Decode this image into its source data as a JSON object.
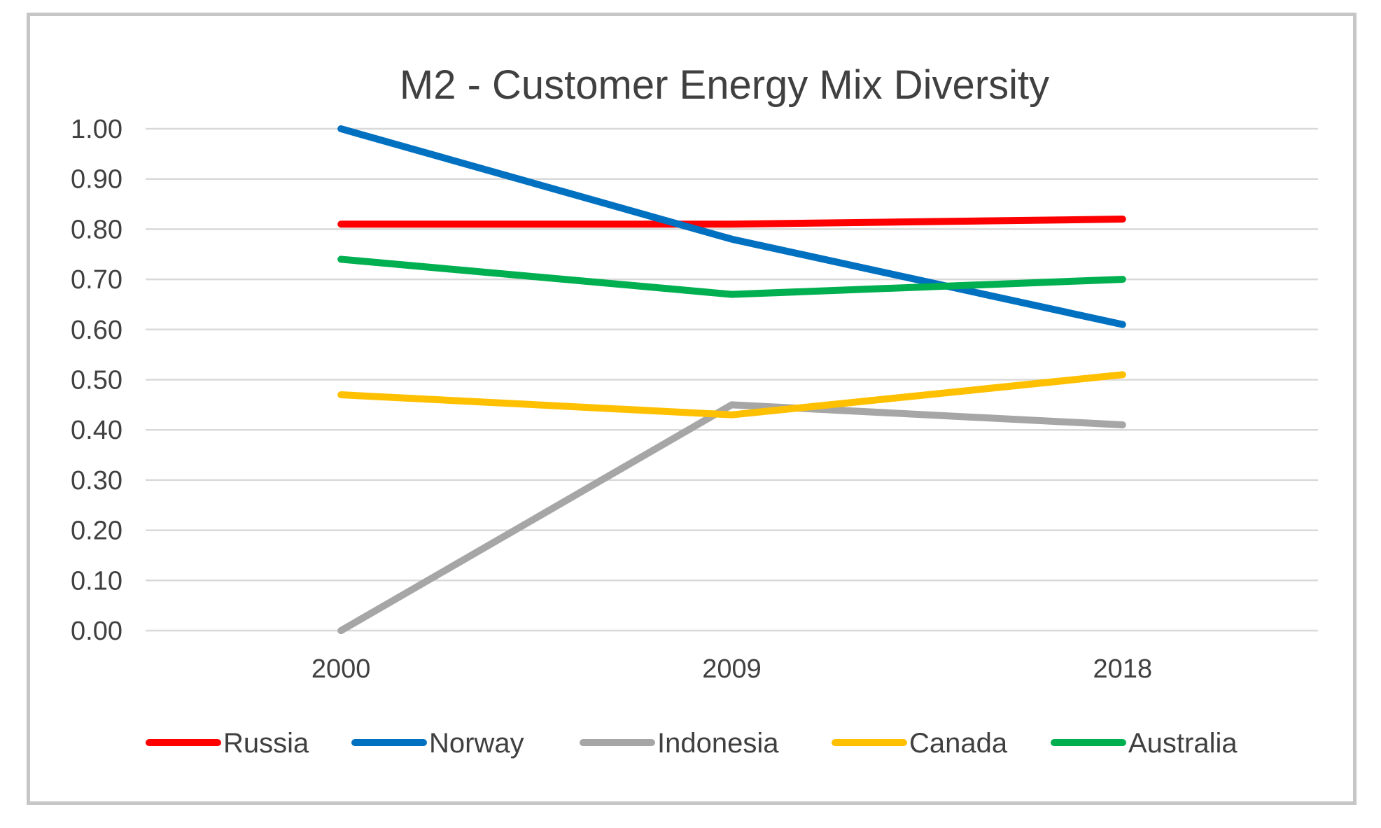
{
  "chart_data": {
    "type": "line",
    "title": "M2 - Customer Energy Mix Diversity",
    "xlabel": "",
    "ylabel": "",
    "categories": [
      "2000",
      "2009",
      "2018"
    ],
    "ylim": [
      0,
      1
    ],
    "yticks": [
      "0.00",
      "0.10",
      "0.20",
      "0.30",
      "0.40",
      "0.50",
      "0.60",
      "0.70",
      "0.80",
      "0.90",
      "1.00"
    ],
    "grid": true,
    "legend": "bottom",
    "series": [
      {
        "name": "Russia",
        "color": "#ff0000",
        "values": [
          0.81,
          0.81,
          0.82
        ]
      },
      {
        "name": "Norway",
        "color": "#0070c0",
        "values": [
          1.0,
          0.78,
          0.61
        ]
      },
      {
        "name": "Indonesia",
        "color": "#a6a6a6",
        "values": [
          0.0,
          0.45,
          0.41
        ]
      },
      {
        "name": "Canada",
        "color": "#ffc000",
        "values": [
          0.47,
          0.43,
          0.51
        ]
      },
      {
        "name": "Australia",
        "color": "#00b050",
        "values": [
          0.74,
          0.67,
          0.7
        ]
      }
    ]
  }
}
